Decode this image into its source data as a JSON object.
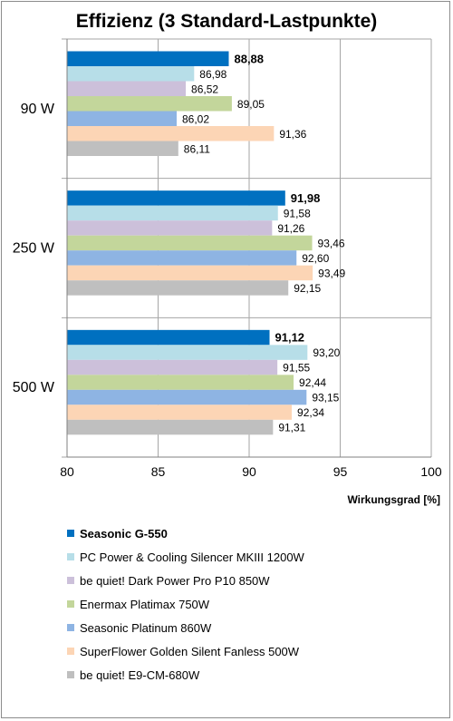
{
  "chart_data": {
    "type": "bar",
    "orientation": "horizontal",
    "title": "Effizienz (3 Standard-Lastpunkte)",
    "xlabel": "Wirkungsgrad [%]",
    "ylabel": "",
    "xlim": [
      80,
      100
    ],
    "xticks": [
      "80",
      "85",
      "90",
      "95",
      "100"
    ],
    "categories": [
      "90 W",
      "250 W",
      "500 W"
    ],
    "grid": true,
    "legend_position": "bottom",
    "series": [
      {
        "name": "Seasonic G-550",
        "color": "#0070c0",
        "values": [
          88.88,
          91.98,
          91.12
        ],
        "labels": [
          "88,88",
          "91,98",
          "91,12"
        ],
        "bold": true
      },
      {
        "name": "PC Power & Cooling Silencer MKIII 1200W",
        "color": "#b7dee8",
        "values": [
          86.98,
          91.58,
          93.2
        ],
        "labels": [
          "86,98",
          "91,58",
          "93,20"
        ],
        "bold": false
      },
      {
        "name": "be quiet! Dark Power Pro P10 850W",
        "color": "#ccc0da",
        "values": [
          86.52,
          91.26,
          91.55
        ],
        "labels": [
          "86,52",
          "91,26",
          "91,55"
        ],
        "bold": false
      },
      {
        "name": "Enermax Platimax 750W",
        "color": "#c3d69b",
        "values": [
          89.05,
          93.46,
          92.44
        ],
        "labels": [
          "89,05",
          "93,46",
          "92,44"
        ],
        "bold": false
      },
      {
        "name": "Seasonic Platinum 860W",
        "color": "#8eb4e3",
        "values": [
          86.02,
          92.6,
          93.15
        ],
        "labels": [
          "86,02",
          "92,60",
          "93,15"
        ],
        "bold": false
      },
      {
        "name": "SuperFlower Golden Silent Fanless 500W",
        "color": "#fcd5b5",
        "values": [
          91.36,
          93.49,
          92.34
        ],
        "labels": [
          "91,36",
          "93,49",
          "92,34"
        ],
        "bold": false
      },
      {
        "name": "be quiet! E9-CM-680W",
        "color": "#bfbfbf",
        "values": [
          86.11,
          92.15,
          91.31
        ],
        "labels": [
          "86,11",
          "92,15",
          "91,31"
        ],
        "bold": false
      }
    ]
  }
}
